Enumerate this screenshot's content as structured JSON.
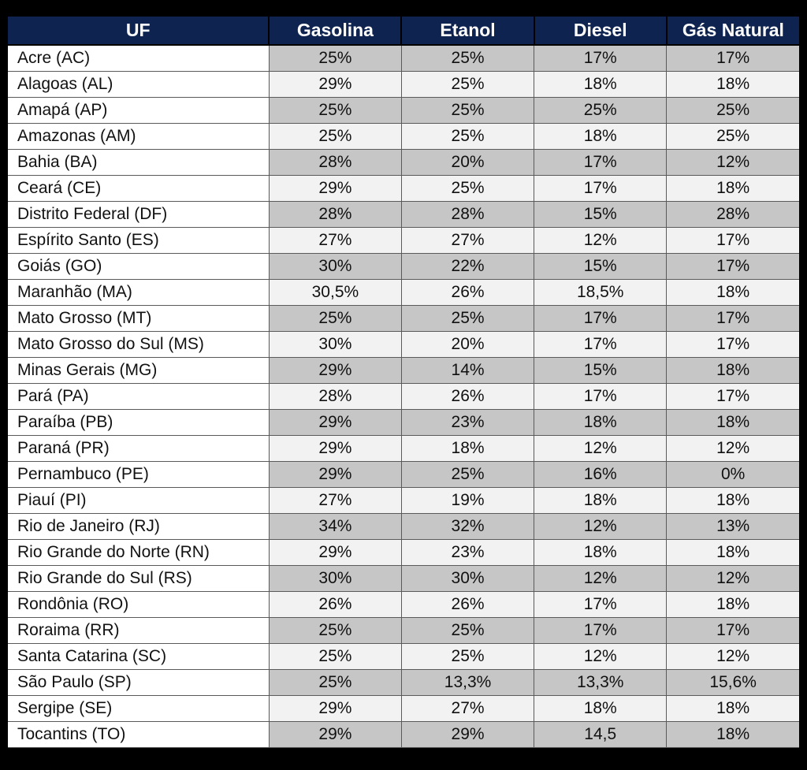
{
  "chart_data": {
    "type": "table",
    "columns": [
      "UF",
      "Gasolina",
      "Etanol",
      "Diesel",
      "Gás Natural"
    ],
    "rows": [
      [
        "Acre (AC)",
        "25%",
        "25%",
        "17%",
        "17%"
      ],
      [
        "Alagoas (AL)",
        "29%",
        "25%",
        "18%",
        "18%"
      ],
      [
        "Amapá (AP)",
        "25%",
        "25%",
        "25%",
        "25%"
      ],
      [
        "Amazonas (AM)",
        "25%",
        "25%",
        "18%",
        "25%"
      ],
      [
        "Bahia (BA)",
        "28%",
        "20%",
        "17%",
        "12%"
      ],
      [
        "Ceará (CE)",
        "29%",
        "25%",
        "17%",
        "18%"
      ],
      [
        "Distrito Federal (DF)",
        "28%",
        "28%",
        "15%",
        "28%"
      ],
      [
        "Espírito Santo (ES)",
        "27%",
        "27%",
        "12%",
        "17%"
      ],
      [
        "Goiás (GO)",
        "30%",
        "22%",
        "15%",
        "17%"
      ],
      [
        "Maranhão (MA)",
        "30,5%",
        "26%",
        "18,5%",
        "18%"
      ],
      [
        "Mato Grosso (MT)",
        "25%",
        "25%",
        "17%",
        "17%"
      ],
      [
        "Mato Grosso do Sul (MS)",
        "30%",
        "20%",
        "17%",
        "17%"
      ],
      [
        "Minas Gerais (MG)",
        "29%",
        "14%",
        "15%",
        "18%"
      ],
      [
        "Pará (PA)",
        "28%",
        "26%",
        "17%",
        "17%"
      ],
      [
        "Paraíba (PB)",
        "29%",
        "23%",
        "18%",
        "18%"
      ],
      [
        "Paraná (PR)",
        "29%",
        "18%",
        "12%",
        "12%"
      ],
      [
        "Pernambuco (PE)",
        "29%",
        "25%",
        "16%",
        "0%"
      ],
      [
        "Piauí (PI)",
        "27%",
        "19%",
        "18%",
        "18%"
      ],
      [
        "Rio de Janeiro (RJ)",
        "34%",
        "32%",
        "12%",
        "13%"
      ],
      [
        "Rio Grande do Norte (RN)",
        "29%",
        "23%",
        "18%",
        "18%"
      ],
      [
        "Rio Grande do Sul (RS)",
        "30%",
        "30%",
        "12%",
        "12%"
      ],
      [
        "Rondônia (RO)",
        "26%",
        "26%",
        "17%",
        "18%"
      ],
      [
        "Roraima (RR)",
        "25%",
        "25%",
        "17%",
        "17%"
      ],
      [
        "Santa Catarina (SC)",
        "25%",
        "25%",
        "12%",
        "12%"
      ],
      [
        "São Paulo (SP)",
        "25%",
        "13,3%",
        "13,3%",
        "15,6%"
      ],
      [
        "Sergipe (SE)",
        "29%",
        "27%",
        "18%",
        "18%"
      ],
      [
        "Tocantins (TO)",
        "29%",
        "29%",
        "14,5",
        "18%"
      ]
    ]
  },
  "colors": {
    "header_bg": "#0e2350",
    "header_text": "#ffffff",
    "row_shaded": "#c6c6c6",
    "row_light": "#f2f2f2",
    "uf_cell": "#ffffff",
    "page_bg": "#000000"
  }
}
